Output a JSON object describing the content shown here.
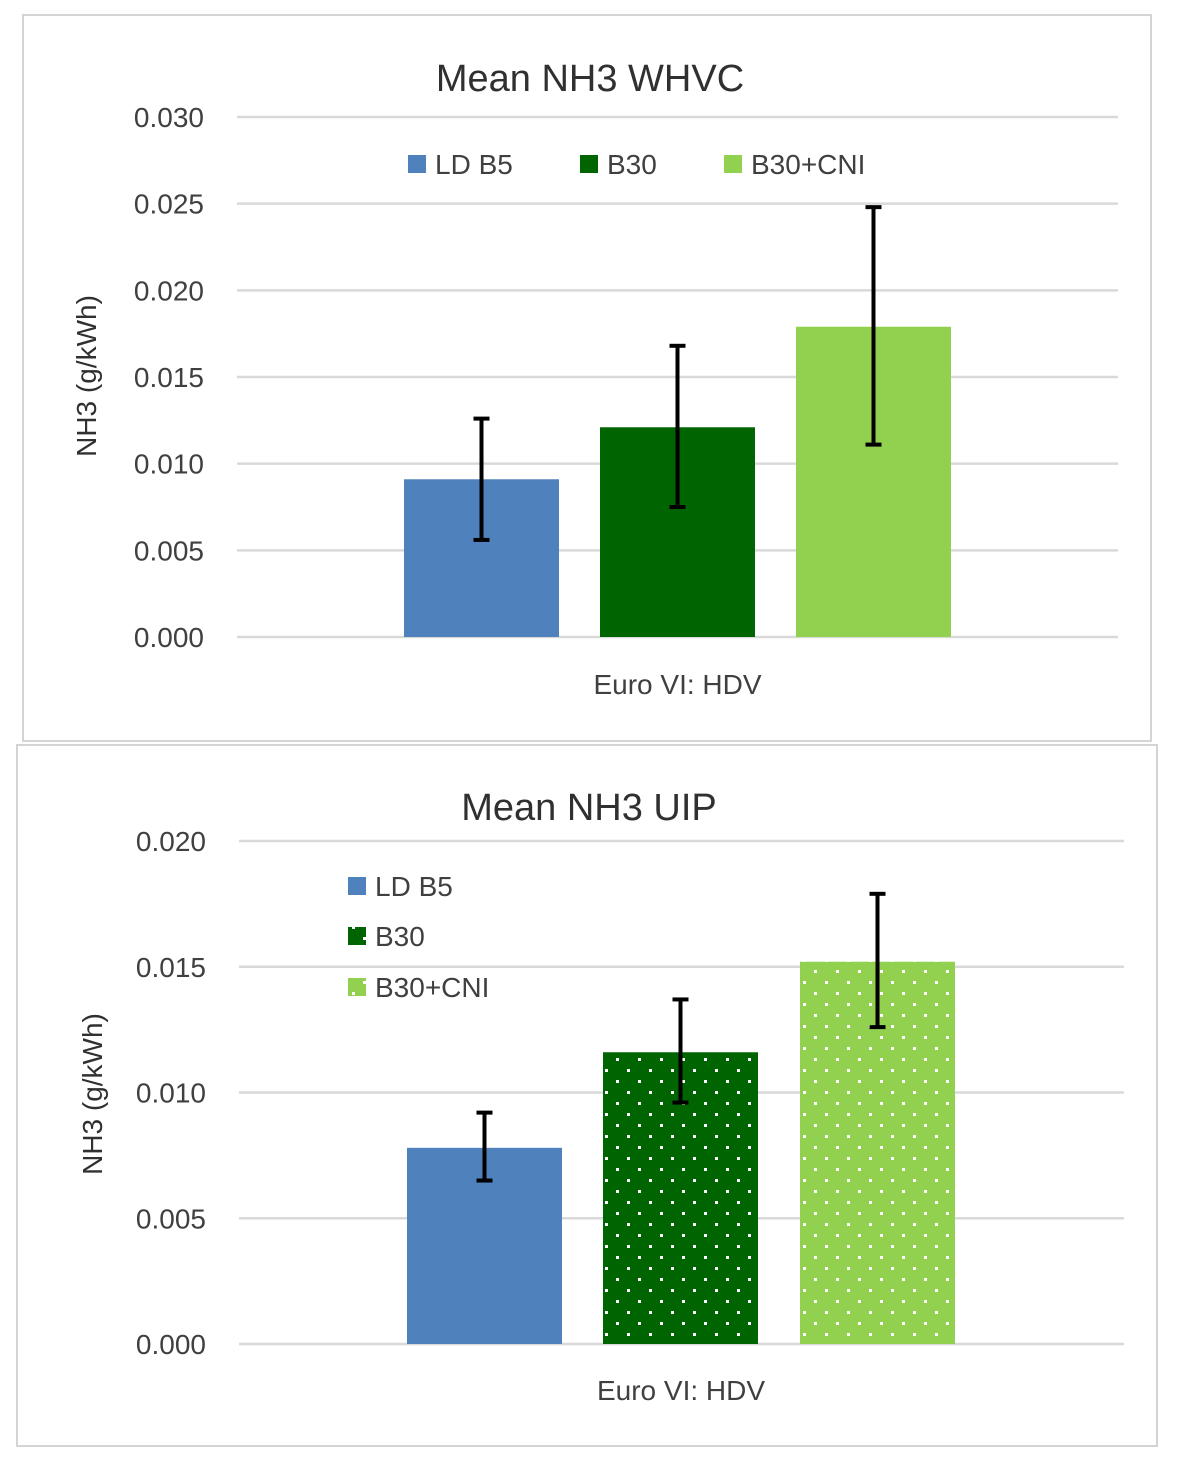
{
  "chart_data": [
    {
      "type": "bar",
      "title": "Mean NH3 WHVC",
      "categories": [
        "Euro VI: HDV"
      ],
      "ylabel": "NH3 (g/kWh)",
      "xlabel": "",
      "ylim": [
        0,
        0.03
      ],
      "yticks": [
        "0.000",
        "0.005",
        "0.010",
        "0.015",
        "0.020",
        "0.025",
        "0.030"
      ],
      "grid": true,
      "legend_position": "top",
      "series": [
        {
          "name": "LD B5",
          "values": [
            0.0091
          ],
          "error_low": [
            0.0056
          ],
          "error_high": [
            0.0126
          ],
          "color": "#4f81bd",
          "pattern": "solid"
        },
        {
          "name": "B30",
          "values": [
            0.0121
          ],
          "error_low": [
            0.0075
          ],
          "error_high": [
            0.0168
          ],
          "color": "#006400",
          "pattern": "solid"
        },
        {
          "name": "B30+CNI",
          "values": [
            0.0179
          ],
          "error_low": [
            0.0111
          ],
          "error_high": [
            0.0248
          ],
          "color": "#92d050",
          "pattern": "solid"
        }
      ]
    },
    {
      "type": "bar",
      "title": "Mean NH3 UIP",
      "categories": [
        "Euro VI: HDV"
      ],
      "ylabel": "NH3 (g/kWh)",
      "xlabel": "",
      "ylim": [
        0,
        0.02
      ],
      "yticks": [
        "0.000",
        "0.005",
        "0.010",
        "0.015",
        "0.020"
      ],
      "grid": true,
      "legend_position": "top-left",
      "series": [
        {
          "name": "LD B5",
          "values": [
            0.0078
          ],
          "error_low": [
            0.0065
          ],
          "error_high": [
            0.0092
          ],
          "color": "#4f81bd",
          "pattern": "solid"
        },
        {
          "name": "B30",
          "values": [
            0.0116
          ],
          "error_low": [
            0.0096
          ],
          "error_high": [
            0.0137
          ],
          "color": "#006400",
          "pattern": "dotted"
        },
        {
          "name": "B30+CNI",
          "values": [
            0.0152
          ],
          "error_low": [
            0.0126
          ],
          "error_high": [
            0.0179
          ],
          "color": "#92d050",
          "pattern": "dotted"
        }
      ]
    }
  ]
}
